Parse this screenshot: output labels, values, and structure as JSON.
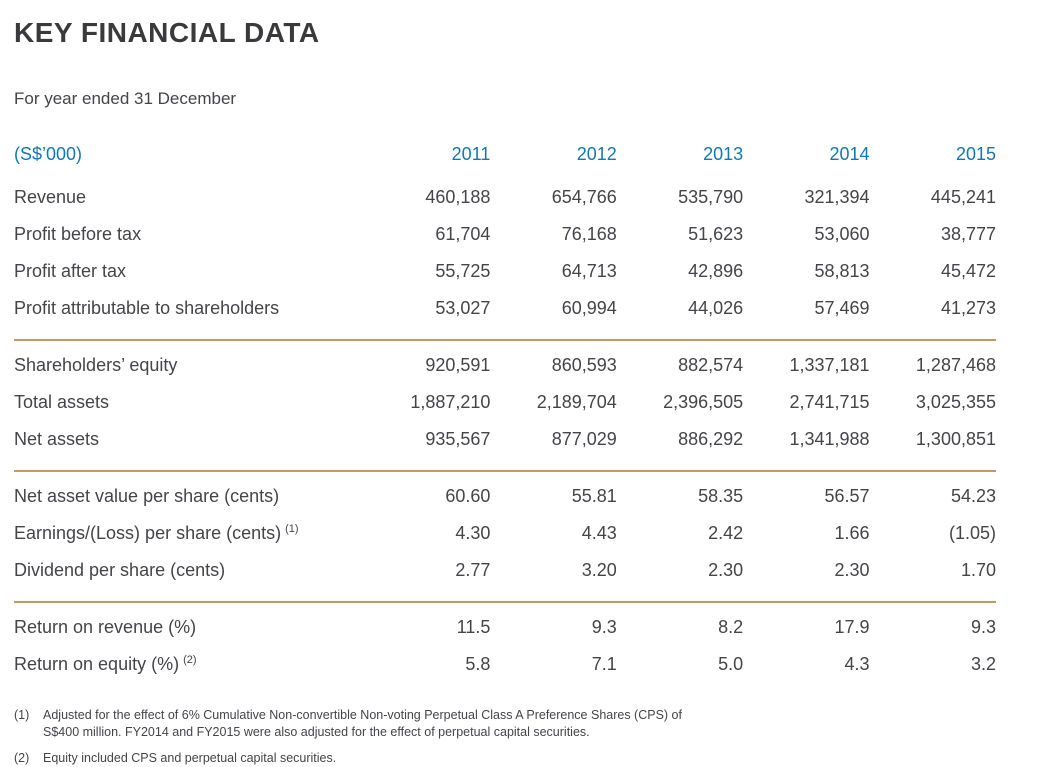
{
  "header": {
    "title": "KEY FINANCIAL DATA",
    "subtitle": "For year ended 31 December"
  },
  "colors": {
    "accent_blue": "#1278b5",
    "separator_gold": "#bf9b60",
    "text_dark": "#454449",
    "title_dark": "#3a393b"
  },
  "chart_data": {
    "type": "table",
    "unit_label": "(S$’000)",
    "columns": [
      "2011",
      "2012",
      "2013",
      "2014",
      "2015"
    ],
    "sections": [
      {
        "rows": [
          {
            "label": "Revenue",
            "values": [
              "460,188",
              "654,766",
              "535,790",
              "321,394",
              "445,241"
            ]
          },
          {
            "label": "Profit before tax",
            "values": [
              "61,704",
              "76,168",
              "51,623",
              "53,060",
              "38,777"
            ]
          },
          {
            "label": "Profit after tax",
            "values": [
              "55,725",
              "64,713",
              "42,896",
              "58,813",
              "45,472"
            ]
          },
          {
            "label": "Profit attributable to shareholders",
            "values": [
              "53,027",
              "60,994",
              "44,026",
              "57,469",
              "41,273"
            ]
          }
        ]
      },
      {
        "rows": [
          {
            "label": "Shareholders’ equity",
            "values": [
              "920,591",
              "860,593",
              "882,574",
              "1,337,181",
              "1,287,468"
            ]
          },
          {
            "label": "Total assets",
            "values": [
              "1,887,210",
              "2,189,704",
              "2,396,505",
              "2,741,715",
              "3,025,355"
            ]
          },
          {
            "label": "Net assets",
            "values": [
              "935,567",
              "877,029",
              "886,292",
              "1,341,988",
              "1,300,851"
            ]
          }
        ]
      },
      {
        "rows": [
          {
            "label": "Net asset value per share (cents)",
            "values": [
              "60.60",
              "55.81",
              "58.35",
              "56.57",
              "54.23"
            ]
          },
          {
            "label": "Earnings/(Loss) per share (cents)",
            "footnote": "(1)",
            "values": [
              "4.30",
              "4.43",
              "2.42",
              "1.66",
              "(1.05)"
            ]
          },
          {
            "label": "Dividend per share (cents)",
            "values": [
              "2.77",
              "3.20",
              "2.30",
              "2.30",
              "1.70"
            ]
          }
        ]
      },
      {
        "rows": [
          {
            "label": "Return on revenue (%)",
            "values": [
              "11.5",
              "9.3",
              "8.2",
              "17.9",
              "9.3"
            ]
          },
          {
            "label": "Return on equity (%)",
            "footnote": "(2)",
            "values": [
              "5.8",
              "7.1",
              "5.0",
              "4.3",
              "3.2"
            ]
          }
        ]
      }
    ]
  },
  "footnotes": [
    {
      "marker": "(1)",
      "text": "Adjusted for the effect of 6% Cumulative Non-convertible Non-voting Perpetual Class A Preference Shares (CPS) of S$400 million. FY2014 and FY2015 were also adjusted for the effect of perpetual capital securities."
    },
    {
      "marker": "(2)",
      "text": "Equity included CPS and perpetual capital securities."
    }
  ]
}
